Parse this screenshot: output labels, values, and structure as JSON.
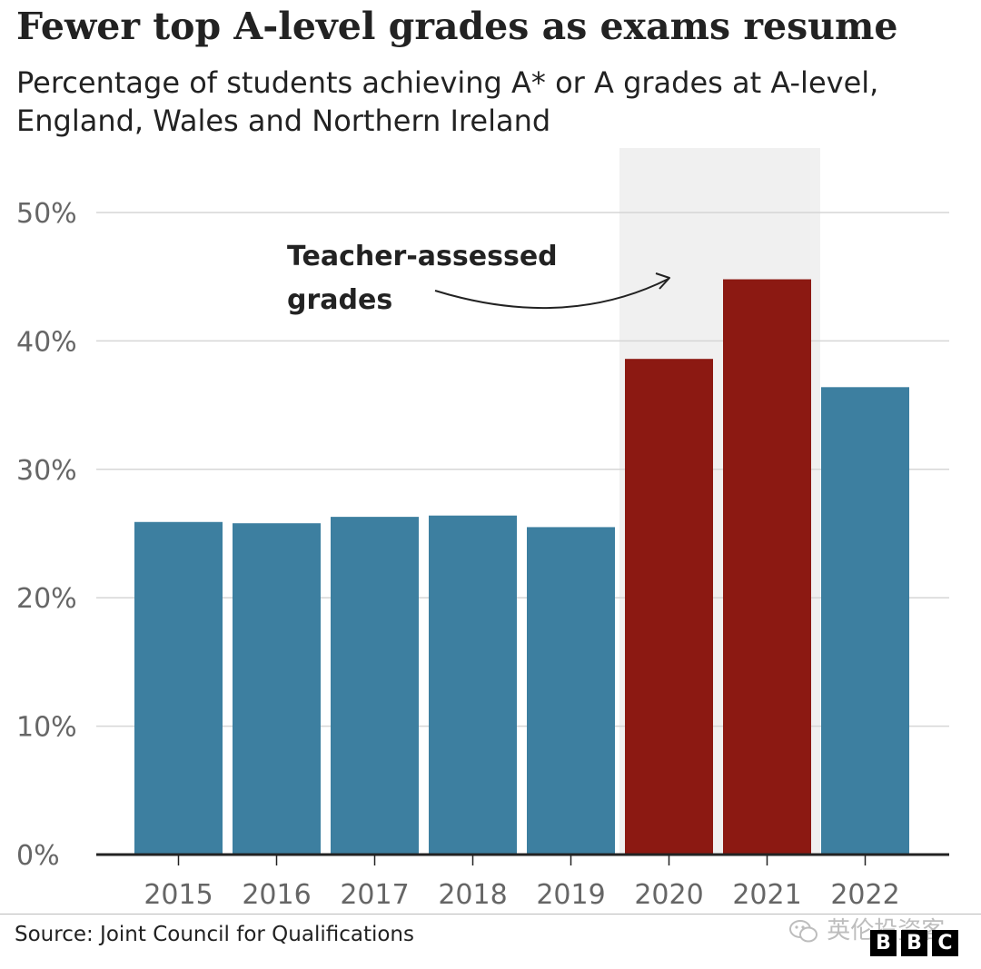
{
  "header": {
    "title": "Fewer top A-level grades as exams resume",
    "subtitle": "Percentage of students achieving A* or A grades at A-level, England, Wales and Northern Ireland"
  },
  "chart_data": {
    "type": "bar",
    "title": "Fewer top A-level grades as exams resume",
    "subtitle": "Percentage of students achieving A* or A grades at A-level, England, Wales and Northern Ireland",
    "xlabel": "",
    "ylabel": "",
    "categories": [
      "2015",
      "2016",
      "2017",
      "2018",
      "2019",
      "2020",
      "2021",
      "2022"
    ],
    "values": [
      25.9,
      25.8,
      26.3,
      26.4,
      25.5,
      38.6,
      44.8,
      36.4
    ],
    "y_unit": "%",
    "ylim": [
      0,
      50
    ],
    "yticks": [
      0,
      10,
      20,
      30,
      40,
      50
    ],
    "ytick_labels": [
      "0%",
      "10%",
      "20%",
      "30%",
      "40%",
      "50%"
    ],
    "grid": true,
    "highlighted_categories": [
      "2020",
      "2021"
    ],
    "annotation": {
      "text": "Teacher-assessed grades",
      "lines": [
        "Teacher-assessed",
        "grades"
      ],
      "refers_to": [
        "2020",
        "2021"
      ]
    },
    "colors": {
      "default_bar": "#3d7fa0",
      "highlight_bar": "#8c1912",
      "highlight_band": "#f0f0f0",
      "gridline": "#d6d6d6",
      "axis": "#222222",
      "tick_label": "#666666"
    }
  },
  "footer": {
    "source": "Source: Joint Council for Qualifications",
    "watermark_text": "英伦投资客",
    "watermark_icon": "wechat-icon",
    "logo_letters": [
      "B",
      "B",
      "C"
    ]
  }
}
